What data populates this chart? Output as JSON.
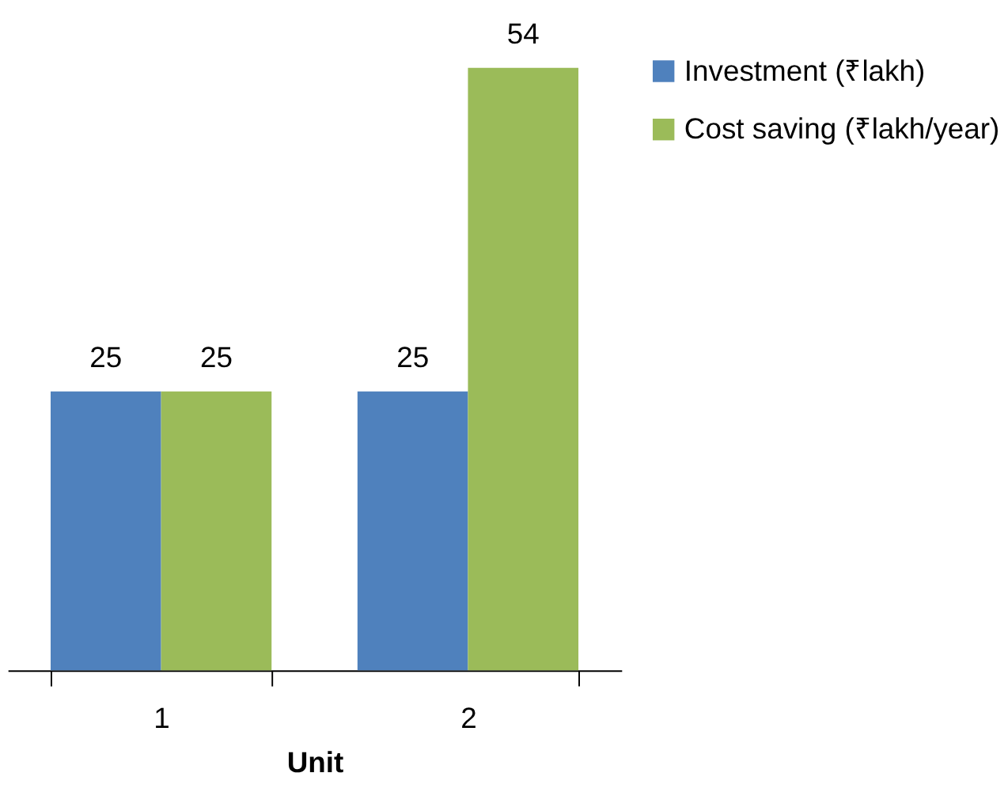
{
  "chart_data": {
    "type": "bar",
    "xlabel": "Unit",
    "categories": [
      "1",
      "2"
    ],
    "series": [
      {
        "name": "Investment (₹lakh)",
        "color": "#4f81bd",
        "values": [
          25,
          25
        ]
      },
      {
        "name": "Cost saving (₹lakh/year)",
        "color": "#9bbb59",
        "values": [
          25,
          54
        ]
      }
    ],
    "data_labels": true,
    "legend": "right",
    "grid": false
  }
}
